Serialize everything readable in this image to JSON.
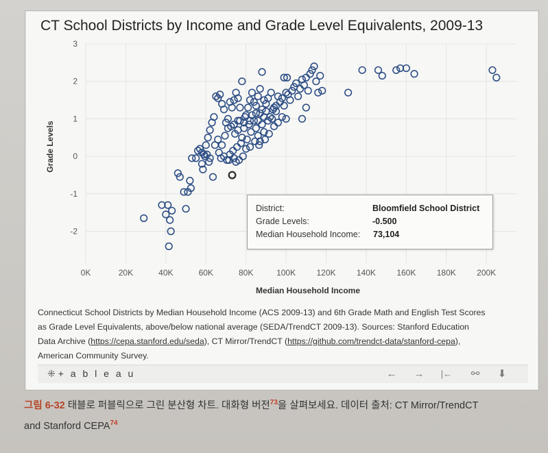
{
  "chart_data": {
    "type": "scatter",
    "title": "CT School Districts by Income and Grade Level Equivalents, 2009-13",
    "xlabel": "Median Household Income",
    "ylabel": "Grade Levels",
    "xlim": [
      0,
      215000
    ],
    "ylim": [
      -2.85,
      3.0
    ],
    "x_ticks": [
      0,
      20000,
      40000,
      60000,
      80000,
      100000,
      120000,
      140000,
      160000,
      180000,
      200000
    ],
    "x_tick_labels": [
      "0K",
      "20K",
      "40K",
      "60K",
      "80K",
      "100K",
      "120K",
      "140K",
      "160K",
      "180K",
      "200K"
    ],
    "y_ticks": [
      3,
      2,
      1,
      0,
      -1,
      -2
    ],
    "y_tick_labels": [
      "3",
      "2",
      "1",
      "0",
      "-1",
      "-2"
    ],
    "grid": true,
    "marker": "hollow-circle",
    "marker_color": "#2e4f86",
    "highlighted_point": [
      73104,
      -0.5
    ],
    "points": [
      [
        29000,
        -1.65
      ],
      [
        38000,
        -1.3
      ],
      [
        40000,
        -1.55
      ],
      [
        41000,
        -1.3
      ],
      [
        43000,
        -1.45
      ],
      [
        42000,
        -1.7
      ],
      [
        42500,
        -2.0
      ],
      [
        41500,
        -2.4
      ],
      [
        46000,
        -0.45
      ],
      [
        47000,
        -0.55
      ],
      [
        49000,
        -0.95
      ],
      [
        51000,
        -0.95
      ],
      [
        50000,
        -1.4
      ],
      [
        52000,
        -0.65
      ],
      [
        52500,
        -0.85
      ],
      [
        53000,
        -0.05
      ],
      [
        55000,
        -0.05
      ],
      [
        56000,
        0.15
      ],
      [
        57000,
        0.2
      ],
      [
        58000,
        -0.2
      ],
      [
        58500,
        -0.35
      ],
      [
        59000,
        0.05
      ],
      [
        60000,
        0.3
      ],
      [
        61000,
        0.5
      ],
      [
        62000,
        0.7
      ],
      [
        63000,
        0.9
      ],
      [
        64000,
        1.05
      ],
      [
        65000,
        1.6
      ],
      [
        66000,
        1.55
      ],
      [
        67000,
        1.65
      ],
      [
        68000,
        1.4
      ],
      [
        69000,
        1.25
      ],
      [
        70000,
        0.9
      ],
      [
        71000,
        1.0
      ],
      [
        72000,
        1.45
      ],
      [
        73000,
        1.3
      ],
      [
        74000,
        1.5
      ],
      [
        75000,
        1.7
      ],
      [
        76000,
        1.55
      ],
      [
        77000,
        1.3
      ],
      [
        72500,
        0.8
      ],
      [
        74500,
        0.6
      ],
      [
        76000,
        0.7
      ],
      [
        78000,
        0.5
      ],
      [
        79000,
        0.9
      ],
      [
        80000,
        1.1
      ],
      [
        81000,
        1.3
      ],
      [
        82000,
        1.5
      ],
      [
        83000,
        1.7
      ],
      [
        84000,
        1.45
      ],
      [
        85000,
        1.35
      ],
      [
        86000,
        1.6
      ],
      [
        87000,
        1.8
      ],
      [
        88000,
        1.25
      ],
      [
        89000,
        1.5
      ],
      [
        90000,
        1.2
      ],
      [
        84000,
        0.95
      ],
      [
        85000,
        0.75
      ],
      [
        86000,
        0.55
      ],
      [
        87000,
        0.4
      ],
      [
        88000,
        0.85
      ],
      [
        89000,
        0.65
      ],
      [
        91000,
        0.95
      ],
      [
        92000,
        1.05
      ],
      [
        93000,
        1.0
      ],
      [
        94000,
        1.3
      ],
      [
        95000,
        1.2
      ],
      [
        96000,
        1.6
      ],
      [
        97000,
        1.45
      ],
      [
        98000,
        1.55
      ],
      [
        99000,
        1.35
      ],
      [
        100000,
        1.7
      ],
      [
        101000,
        1.65
      ],
      [
        102000,
        1.5
      ],
      [
        103000,
        1.75
      ],
      [
        104000,
        1.85
      ],
      [
        105000,
        1.95
      ],
      [
        106000,
        1.6
      ],
      [
        107000,
        1.8
      ],
      [
        108000,
        2.05
      ],
      [
        109000,
        1.9
      ],
      [
        110000,
        2.1
      ],
      [
        111000,
        1.75
      ],
      [
        112000,
        2.2
      ],
      [
        113000,
        2.3
      ],
      [
        114000,
        2.4
      ],
      [
        115000,
        2.0
      ],
      [
        116000,
        1.7
      ],
      [
        117000,
        2.15
      ],
      [
        118000,
        1.75
      ],
      [
        108000,
        1.0
      ],
      [
        110000,
        1.3
      ],
      [
        100000,
        1.0
      ],
      [
        98000,
        1.05
      ],
      [
        96000,
        0.9
      ],
      [
        94000,
        0.8
      ],
      [
        78000,
        2.0
      ],
      [
        88000,
        2.25
      ],
      [
        99000,
        2.1
      ],
      [
        100500,
        2.1
      ],
      [
        91000,
        1.55
      ],
      [
        93500,
        1.25
      ],
      [
        95000,
        1.35
      ],
      [
        83000,
        1.1
      ],
      [
        77000,
        0.95
      ],
      [
        79500,
        1.05
      ],
      [
        81500,
        0.85
      ],
      [
        82500,
        0.65
      ],
      [
        80500,
        0.45
      ],
      [
        77500,
        0.35
      ],
      [
        75500,
        0.25
      ],
      [
        73500,
        0.15
      ],
      [
        72000,
        0.05
      ],
      [
        70500,
        -0.1
      ],
      [
        69000,
        0.0
      ],
      [
        67500,
        -0.05
      ],
      [
        66500,
        0.1
      ],
      [
        64500,
        0.3
      ],
      [
        63500,
        -0.55
      ],
      [
        62000,
        -0.05
      ],
      [
        60500,
        0.05
      ],
      [
        59500,
        0.0
      ],
      [
        58000,
        0.1
      ],
      [
        61500,
        -0.15
      ],
      [
        71500,
        -0.1
      ],
      [
        74000,
        -0.05
      ],
      [
        75000,
        -0.15
      ],
      [
        76500,
        -0.1
      ],
      [
        78500,
        0.0
      ],
      [
        80000,
        0.2
      ],
      [
        82000,
        0.25
      ],
      [
        84500,
        0.4
      ],
      [
        86500,
        0.3
      ],
      [
        89500,
        0.45
      ],
      [
        91500,
        0.6
      ],
      [
        85000,
        1.15
      ],
      [
        90000,
        1.4
      ],
      [
        92500,
        1.7
      ],
      [
        89000,
        1.05
      ],
      [
        87000,
        1.15
      ],
      [
        86000,
        0.95
      ],
      [
        82000,
        0.95
      ],
      [
        79000,
        0.75
      ],
      [
        76000,
        0.95
      ],
      [
        74000,
        0.85
      ],
      [
        71000,
        0.75
      ],
      [
        69500,
        0.55
      ],
      [
        68000,
        0.3
      ],
      [
        66000,
        0.45
      ],
      [
        131000,
        1.7
      ],
      [
        138000,
        2.3
      ],
      [
        146000,
        2.3
      ],
      [
        148000,
        2.15
      ],
      [
        155000,
        2.3
      ],
      [
        157000,
        2.35
      ],
      [
        160000,
        2.35
      ],
      [
        164000,
        2.2
      ],
      [
        203000,
        2.3
      ],
      [
        205000,
        2.1
      ],
      [
        73104,
        -0.5
      ]
    ]
  },
  "tooltip": {
    "district_label": "District:",
    "district_value": "Bloomfield School District",
    "grade_label": "Grade Levels:",
    "grade_value": "-0.500",
    "income_label": "Median Household Income:",
    "income_value": "73,104"
  },
  "caption": {
    "line1": "Connecticut School Districts by Median Household Income (ACS 2009-13) and 6th Grade Math and English Test Scores",
    "line2": "as Grade Level Equivalents, above/below national average (SEDA/TrendCT 2009-13). Sources: Stanford Education",
    "line3_pre": "Data Archive (",
    "link1": "https://cepa.stanford.edu/seda",
    "line3_mid": "), CT Mirror/TrendCT (",
    "link2": "https://github.com/trendct-data/stanford-cepa",
    "line3_post": "),",
    "line4": "American Community Survey."
  },
  "toolbar": {
    "logo": "+ a b l e a u",
    "logo_mark": "⁜",
    "undo_icon": "←",
    "redo_icon": "→",
    "revert_icon": "|←",
    "share_icon": "⚯",
    "download_icon": "⬇"
  },
  "figure_caption": {
    "label": "그림 6-32",
    "text1": " 태블로 퍼블릭으로 그린 분산형 차트. 대화형 버전",
    "sup1": "73",
    "text2": "을 살펴보세요. 데이터 출처: CT Mirror/TrendCT",
    "line2": "and Stanford CEPA",
    "sup2": "74"
  }
}
